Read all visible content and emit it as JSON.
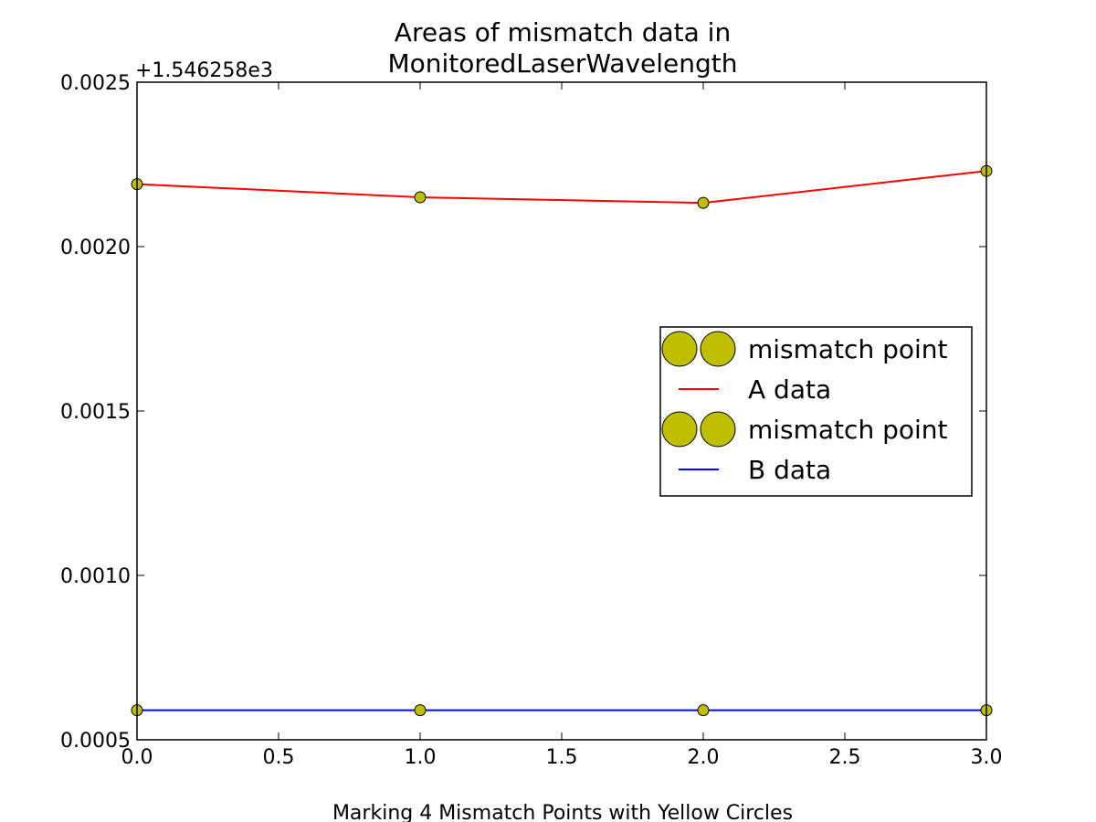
{
  "chart_data": {
    "type": "line",
    "title_lines": [
      "Areas of mismatch data in",
      "MonitoredLaserWavelength"
    ],
    "xlabel": "Marking 4 Mismatch Points with Yellow Circles",
    "ylabel": "",
    "y_offset_label": "+1.546258e3",
    "xlim": [
      0.0,
      3.0
    ],
    "ylim": [
      0.0005,
      0.0025
    ],
    "x_ticks": [
      0.0,
      0.5,
      1.0,
      1.5,
      2.0,
      2.5,
      3.0
    ],
    "x_tick_labels": [
      "0.0",
      "0.5",
      "1.0",
      "1.5",
      "2.0",
      "2.5",
      "3.0"
    ],
    "y_ticks": [
      0.0005,
      0.001,
      0.0015,
      0.002,
      0.0025
    ],
    "y_tick_labels": [
      "0.0005",
      "0.0010",
      "0.0015",
      "0.0020",
      "0.0025"
    ],
    "grid": false,
    "legend_position": "center-right",
    "series": [
      {
        "name": "A data",
        "color": "#ff0000",
        "x": [
          0,
          1,
          2,
          3
        ],
        "y": [
          0.00219,
          0.00215,
          0.002133,
          0.00223
        ]
      },
      {
        "name": "B data",
        "color": "#0000ff",
        "x": [
          0,
          1,
          2,
          3
        ],
        "y": [
          0.00059,
          0.00059,
          0.00059,
          0.00059
        ]
      }
    ],
    "mismatch_marker_color": "#bfbf00",
    "legend": [
      {
        "label": "mismatch point",
        "kind": "marker"
      },
      {
        "label": "A data",
        "kind": "line",
        "color": "#ff0000"
      },
      {
        "label": "mismatch point",
        "kind": "marker"
      },
      {
        "label": "B data",
        "kind": "line",
        "color": "#0000ff"
      }
    ]
  }
}
